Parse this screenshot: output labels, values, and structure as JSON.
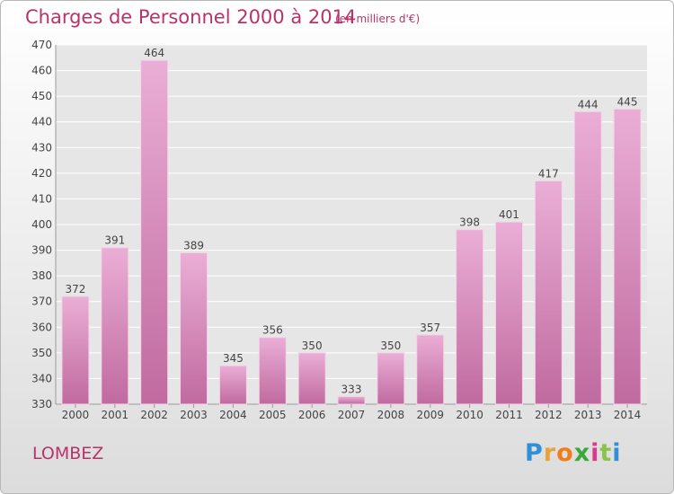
{
  "header": {
    "title": "Charges de Personnel 2000 à 2014",
    "subtitle": "(en milliers d'€)"
  },
  "footer": {
    "commune": "LOMBEZ",
    "logo_letters": [
      "P",
      "r",
      "o",
      "x",
      "i",
      "t",
      "i"
    ],
    "logo_colors": [
      "#2f8fd8",
      "#e8a23a",
      "#f07d1a",
      "#3aa83a",
      "#d93a8b",
      "#8bc34a",
      "#2f8fd8"
    ]
  },
  "colors": {
    "bar_light": "#eaaed6",
    "bar_dark": "#c06a9f",
    "title": "#b8336a"
  },
  "chart_data": {
    "type": "bar",
    "categories": [
      "2000",
      "2001",
      "2002",
      "2003",
      "2004",
      "2005",
      "2006",
      "2007",
      "2008",
      "2009",
      "2010",
      "2011",
      "2012",
      "2013",
      "2014"
    ],
    "values": [
      372,
      391,
      464,
      389,
      345,
      356,
      350,
      333,
      350,
      357,
      398,
      401,
      417,
      444,
      445
    ],
    "title": "Charges de Personnel 2000 à 2014",
    "subtitle": "(en milliers d'€)",
    "xlabel": "",
    "ylabel": "",
    "ylim": [
      330,
      470
    ],
    "yticks": [
      330,
      340,
      350,
      360,
      370,
      380,
      390,
      400,
      410,
      420,
      430,
      440,
      450,
      460,
      470
    ],
    "grid": true,
    "data_labels": true
  }
}
